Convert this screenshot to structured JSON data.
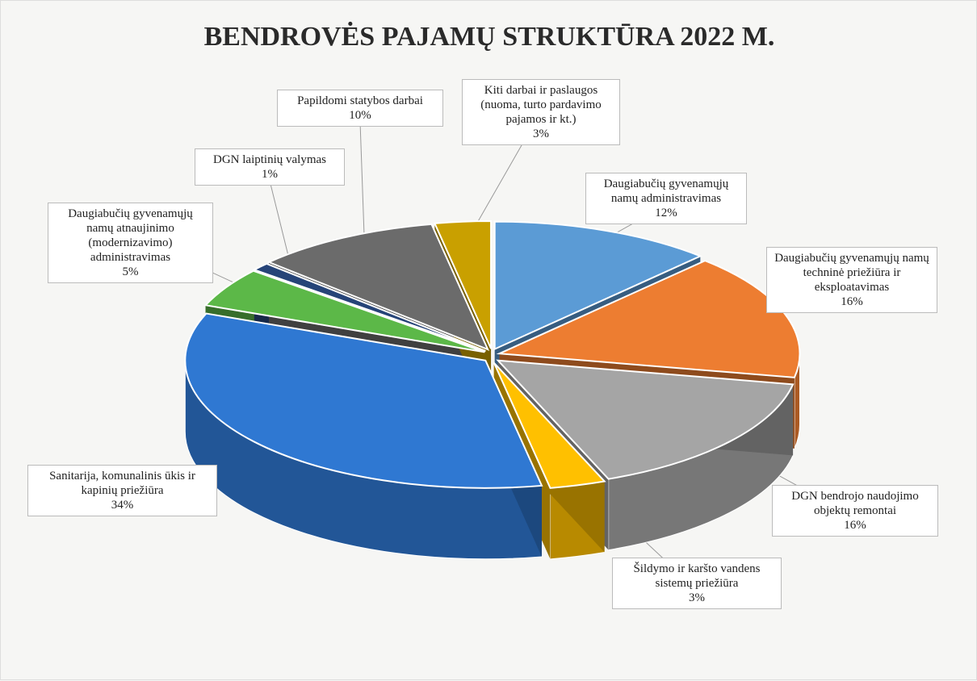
{
  "chart_data": {
    "type": "pie",
    "title": "BENDROVĖS PAJAMŲ STRUKTŪRA 2022 M.",
    "categories": [
      "Daugiabučių gyvenamųjų namų administravimas",
      "Daugiabučių gyvenamųjų namų techninė priežiūra ir eksploatavimas",
      "DGN bendrojo naudojimo objektų remontai",
      "Šildymo ir karšto vandens sistemų priežiūra",
      "Sanitarija, komunalinis ūkis ir kapinių priežiūra",
      "Daugiabučių gyvenamųjų namų atnaujinimo (modernizavimo) administravimas",
      "DGN laiptinių valymas",
      "Papildomi statybos darbai",
      "Kiti darbai ir paslaugos (nuoma, turto pardavimo pajamos ir kt.)"
    ],
    "values": [
      12,
      16,
      16,
      3,
      34,
      5,
      1,
      10,
      3
    ],
    "value_labels": [
      "12%",
      "16%",
      "16%",
      "3%",
      "34%",
      "5%",
      "1%",
      "10%",
      "3%"
    ],
    "colors": [
      "#5b9bd5",
      "#ed7d31",
      "#a5a5a5",
      "#ffc000",
      "#2f78d2",
      "#5cb848",
      "#264478",
      "#6b6b6b",
      "#c9a000"
    ]
  }
}
